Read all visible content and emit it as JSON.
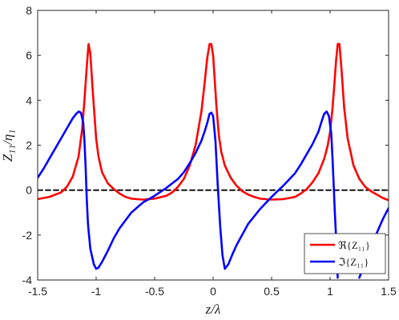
{
  "chart_data": {
    "type": "line",
    "xlabel": "z/λ",
    "ylabel": "Z₁₁/η₁",
    "xlim": [
      -1.5,
      1.5
    ],
    "ylim": [
      -4,
      8
    ],
    "xticks": [
      "-1.5",
      "-1",
      "-0.5",
      "0",
      "0.5",
      "1",
      "1.5"
    ],
    "yticks": [
      "-4",
      "-2",
      "0",
      "2",
      "4",
      "6",
      "8"
    ],
    "grid": false,
    "legend": {
      "placement": "bottom-right"
    },
    "series": [
      {
        "name": "ℜ{Z₁₁}",
        "color": "#ff0000",
        "x": [
          -1.5,
          -1.4,
          -1.3,
          -1.25,
          -1.2,
          -1.15,
          -1.12,
          -1.1,
          -1.08,
          -1.065,
          -1.05,
          -1.03,
          -1.0,
          -0.98,
          -0.95,
          -0.9,
          -0.85,
          -0.8,
          -0.75,
          -0.7,
          -0.6,
          -0.5,
          -0.4,
          -0.35,
          -0.3,
          -0.25,
          -0.2,
          -0.15,
          -0.1,
          -0.07,
          -0.05,
          -0.03,
          -0.015,
          0.0,
          0.015,
          0.03,
          0.05,
          0.07,
          0.1,
          0.15,
          0.2,
          0.25,
          0.3,
          0.35,
          0.4,
          0.5,
          0.6,
          0.7,
          0.75,
          0.8,
          0.85,
          0.9,
          0.95,
          0.98,
          1.0,
          1.02,
          1.035,
          1.05,
          1.065,
          1.08,
          1.1,
          1.12,
          1.15,
          1.2,
          1.25,
          1.3,
          1.35,
          1.4,
          1.45,
          1.5
        ],
        "y": [
          -0.4,
          -0.3,
          -0.1,
          0.15,
          0.6,
          1.5,
          2.7,
          4.0,
          5.5,
          6.5,
          6.1,
          4.5,
          2.3,
          1.5,
          0.8,
          0.3,
          0.05,
          -0.15,
          -0.3,
          -0.38,
          -0.42,
          -0.38,
          -0.25,
          -0.1,
          0.15,
          0.5,
          1.1,
          2.0,
          3.5,
          4.9,
          5.9,
          6.5,
          6.5,
          6.0,
          4.8,
          3.6,
          2.4,
          1.7,
          1.1,
          0.55,
          0.2,
          -0.05,
          -0.2,
          -0.3,
          -0.38,
          -0.42,
          -0.4,
          -0.3,
          -0.15,
          0.05,
          0.35,
          0.75,
          1.4,
          2.0,
          2.6,
          3.6,
          4.6,
          5.7,
          6.5,
          6.5,
          5.2,
          3.7,
          2.3,
          1.1,
          0.5,
          0.15,
          -0.05,
          -0.2,
          -0.35,
          -0.45
        ]
      },
      {
        "name": "ℑ{Z₁₁}",
        "color": "#0000ff",
        "x": [
          -1.5,
          -1.45,
          -1.4,
          -1.35,
          -1.3,
          -1.25,
          -1.2,
          -1.17,
          -1.15,
          -1.13,
          -1.11,
          -1.1,
          -1.09,
          -1.08,
          -1.07,
          -1.05,
          -1.02,
          -1.0,
          -0.98,
          -0.95,
          -0.9,
          -0.85,
          -0.8,
          -0.7,
          -0.6,
          -0.5,
          -0.4,
          -0.3,
          -0.25,
          -0.2,
          -0.15,
          -0.1,
          -0.07,
          -0.05,
          -0.03,
          -0.015,
          0.0,
          0.02,
          0.04,
          0.06,
          0.08,
          0.1,
          0.13,
          0.17,
          0.2,
          0.3,
          0.4,
          0.5,
          0.6,
          0.7,
          0.75,
          0.8,
          0.85,
          0.9,
          0.93,
          0.95,
          0.97,
          0.99,
          1.01,
          1.02,
          1.03,
          1.04,
          1.05,
          1.065
        ],
        "y": [
          0.55,
          0.95,
          1.4,
          1.85,
          2.3,
          2.75,
          3.2,
          3.4,
          3.5,
          3.45,
          3.0,
          2.2,
          1.0,
          -0.4,
          -1.5,
          -2.6,
          -3.3,
          -3.5,
          -3.45,
          -3.2,
          -2.7,
          -2.15,
          -1.7,
          -1.0,
          -0.55,
          -0.25,
          0.1,
          0.5,
          0.8,
          1.2,
          1.65,
          2.2,
          2.65,
          3.0,
          3.4,
          3.45,
          3.3,
          2.2,
          0.2,
          -1.6,
          -2.9,
          -3.5,
          -3.3,
          -2.8,
          -2.45,
          -1.5,
          -0.85,
          -0.3,
          0.2,
          0.75,
          1.15,
          1.6,
          2.05,
          2.6,
          3.1,
          3.4,
          3.5,
          3.3,
          2.5,
          1.5,
          0.3,
          -0.9,
          -2.0,
          -3.9
        ]
      },
      {
        "name": "",
        "color": "#000000",
        "dashed": true,
        "x": [
          -1.5,
          1.5
        ],
        "y": [
          0,
          0
        ]
      }
    ]
  },
  "lower_branch": {
    "color": "#0000ff",
    "x": [
      1.25,
      1.3,
      1.35,
      1.4,
      1.45,
      1.5
    ],
    "y": [
      -3.9,
      -3.2,
      -2.5,
      -1.9,
      -1.3,
      -0.8
    ]
  }
}
